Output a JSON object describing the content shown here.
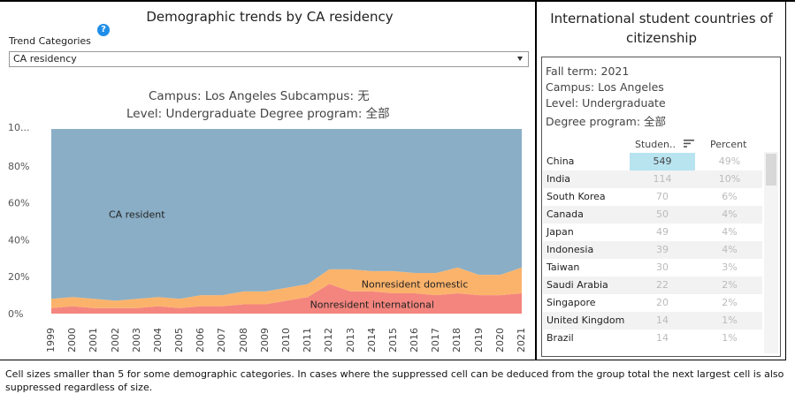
{
  "left": {
    "title": "Demographic trends by CA residency",
    "help_glyph": "?",
    "trend_label": "Trend Categories",
    "dropdown_value": "CA residency",
    "filter_line1": "Campus: Los Angeles    Subcampus: 无",
    "filter_line2": "Level: Undergraduate    Degree program: 全部"
  },
  "chart_data": {
    "type": "area",
    "stacked": true,
    "normalized_percent": true,
    "x": [
      1999,
      2000,
      2001,
      2002,
      2003,
      2004,
      2005,
      2006,
      2007,
      2008,
      2009,
      2010,
      2011,
      2012,
      2013,
      2014,
      2015,
      2016,
      2017,
      2018,
      2019,
      2020,
      2021
    ],
    "series": [
      {
        "name": "Nonresident international",
        "color": "#f4857e",
        "values": [
          3,
          4,
          3,
          3,
          3,
          4,
          3,
          4,
          4,
          5,
          5,
          7,
          9,
          16,
          12,
          12,
          11,
          11,
          10,
          11,
          10,
          10,
          11
        ]
      },
      {
        "name": "Nonresident domestic",
        "color": "#fbb36b",
        "values": [
          5,
          5,
          5,
          4,
          5,
          5,
          5,
          6,
          6,
          7,
          7,
          7,
          7,
          8,
          12,
          11,
          12,
          11,
          12,
          14,
          11,
          11,
          14
        ]
      },
      {
        "name": "CA resident",
        "color": "#8aaec6",
        "values": [
          92,
          91,
          92,
          93,
          92,
          91,
          92,
          90,
          90,
          88,
          88,
          86,
          84,
          76,
          76,
          77,
          77,
          78,
          78,
          75,
          79,
          79,
          75
        ]
      }
    ],
    "y_ticks": [
      "0%",
      "20%",
      "40%",
      "60%",
      "80%",
      "10..."
    ],
    "ylim": [
      0,
      100
    ],
    "legend": "inline-labels"
  },
  "right": {
    "title_line1": "International student countries of",
    "title_line2": "citizenship",
    "fall_term": "Fall term: 2021",
    "campus": "Campus: Los Angeles",
    "level": "Level: Undergraduate",
    "degree": "Degree program: 全部",
    "col_students": "Studen..",
    "col_percent": "Percent",
    "rows": [
      {
        "country": "China",
        "students": "549",
        "percent": "49%"
      },
      {
        "country": "India",
        "students": "114",
        "percent": "10%"
      },
      {
        "country": "South Korea",
        "students": "70",
        "percent": "6%"
      },
      {
        "country": "Canada",
        "students": "50",
        "percent": "4%"
      },
      {
        "country": "Japan",
        "students": "49",
        "percent": "4%"
      },
      {
        "country": "Indonesia",
        "students": "39",
        "percent": "4%"
      },
      {
        "country": "Taiwan",
        "students": "30",
        "percent": "3%"
      },
      {
        "country": "Saudi Arabia",
        "students": "22",
        "percent": "2%"
      },
      {
        "country": "Singapore",
        "students": "20",
        "percent": "2%"
      },
      {
        "country": "United Kingdom",
        "students": "14",
        "percent": "1%"
      },
      {
        "country": "Brazil",
        "students": "14",
        "percent": "1%"
      }
    ]
  },
  "footnote": "Cell sizes smaller than 5 for some demographic categories. In cases where the suppressed cell can be deduced from the group total the next largest cell is also suppressed regardless of size."
}
